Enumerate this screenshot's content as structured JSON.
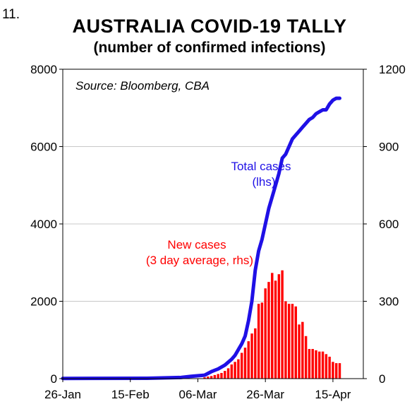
{
  "figure_number": "11.",
  "chart_data": {
    "type": "bar",
    "title": "AUSTRALIA COVID-19 TALLY",
    "subtitle": "(number of confirmed infections)",
    "source": "Source: Bloomberg, CBA",
    "x_start": "2020-01-26",
    "x_end": "2020-04-24",
    "x_tick_labels": [
      "26-Jan",
      "15-Feb",
      "06-Mar",
      "26-Mar",
      "15-Apr"
    ],
    "x_tick_dates": [
      "2020-01-26",
      "2020-02-15",
      "2020-03-06",
      "2020-03-26",
      "2020-04-15"
    ],
    "y_left_ticks": [
      "0",
      "2000",
      "4000",
      "6000",
      "8000"
    ],
    "y_right_ticks": [
      "0",
      "300",
      "600",
      "900",
      "1200"
    ],
    "ylim_left": [
      0,
      8000
    ],
    "ylim_right": [
      0,
      1200
    ],
    "grid": true,
    "annotations": {
      "total": [
        "Total cases",
        "(lhs)"
      ],
      "new": [
        "New cases",
        "(3 day average, rhs)"
      ]
    },
    "colors": {
      "total": "#1f10e6",
      "new": "#ff0000"
    },
    "series": [
      {
        "name": "Total cases (lhs)",
        "type": "line",
        "axis": "left",
        "x": [
          "2020-01-26",
          "2020-02-20",
          "2020-03-01",
          "2020-03-04",
          "2020-03-08",
          "2020-03-10",
          "2020-03-12",
          "2020-03-14",
          "2020-03-16",
          "2020-03-17",
          "2020-03-18",
          "2020-03-19",
          "2020-03-20",
          "2020-03-21",
          "2020-03-22",
          "2020-03-23",
          "2020-03-24",
          "2020-03-25",
          "2020-03-26",
          "2020-03-27",
          "2020-03-28",
          "2020-03-29",
          "2020-03-30",
          "2020-03-31",
          "2020-04-01",
          "2020-04-02",
          "2020-04-03",
          "2020-04-04",
          "2020-04-05",
          "2020-04-06",
          "2020-04-07",
          "2020-04-08",
          "2020-04-09",
          "2020-04-10",
          "2020-04-11",
          "2020-04-12",
          "2020-04-13",
          "2020-04-14",
          "2020-04-15",
          "2020-04-16",
          "2020-04-17"
        ],
        "values": [
          5,
          10,
          30,
          60,
          90,
          180,
          250,
          350,
          500,
          600,
          750,
          900,
          1100,
          1500,
          2000,
          2800,
          3300,
          3600,
          4000,
          4400,
          4700,
          5000,
          5300,
          5700,
          5800,
          6000,
          6200,
          6300,
          6400,
          6500,
          6600,
          6700,
          6750,
          6850,
          6900,
          6950,
          6950,
          7100,
          7200,
          7250,
          7250
        ]
      },
      {
        "name": "New cases (3 day average, rhs)",
        "type": "bar",
        "axis": "right",
        "x": [
          "2020-03-08",
          "2020-03-09",
          "2020-03-10",
          "2020-03-11",
          "2020-03-12",
          "2020-03-13",
          "2020-03-14",
          "2020-03-15",
          "2020-03-16",
          "2020-03-17",
          "2020-03-18",
          "2020-03-19",
          "2020-03-20",
          "2020-03-21",
          "2020-03-22",
          "2020-03-23",
          "2020-03-24",
          "2020-03-25",
          "2020-03-26",
          "2020-03-27",
          "2020-03-28",
          "2020-03-29",
          "2020-03-30",
          "2020-03-31",
          "2020-04-01",
          "2020-04-02",
          "2020-04-03",
          "2020-04-04",
          "2020-04-05",
          "2020-04-06",
          "2020-04-07",
          "2020-04-08",
          "2020-04-09",
          "2020-04-10",
          "2020-04-11",
          "2020-04-12",
          "2020-04-13",
          "2020-04-14",
          "2020-04-15",
          "2020-04-16",
          "2020-04-17"
        ],
        "values": [
          5,
          8,
          10,
          14,
          18,
          22,
          30,
          40,
          55,
          65,
          75,
          100,
          120,
          145,
          175,
          195,
          290,
          295,
          350,
          375,
          410,
          380,
          405,
          420,
          300,
          290,
          290,
          280,
          210,
          220,
          165,
          115,
          115,
          110,
          105,
          105,
          95,
          85,
          65,
          60,
          60
        ]
      }
    ]
  }
}
